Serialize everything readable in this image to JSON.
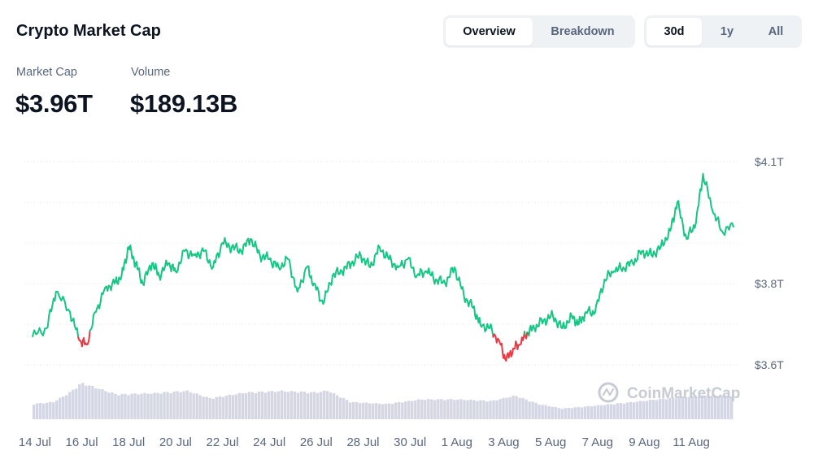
{
  "header": {
    "title": "Crypto Market Cap",
    "view_tabs": [
      {
        "label": "Overview",
        "active": true
      },
      {
        "label": "Breakdown",
        "active": false
      }
    ],
    "range_tabs": [
      {
        "label": "30d",
        "active": true
      },
      {
        "label": "1y",
        "active": false
      },
      {
        "label": "All",
        "active": false
      }
    ]
  },
  "stats": {
    "market_cap_label": "Market Cap",
    "market_cap_value": "$3.96T",
    "volume_label": "Volume",
    "volume_value": "$189.13B"
  },
  "watermark": "CoinMarketCap",
  "colors": {
    "up": "#16c784",
    "down": "#ea3943",
    "volume": "#d4d7e3",
    "grid": "#e3e6eb",
    "text_muted": "#58667e"
  },
  "chart_data": {
    "type": "line",
    "title": "",
    "xlabel": "",
    "ylabel": "",
    "ylim": [
      3.57,
      4.13
    ],
    "y_ticks": [
      3.6,
      3.8,
      4.1
    ],
    "y_tick_labels": [
      "$3.6T",
      "$3.8T",
      "$4.1T"
    ],
    "x_tick_labels": [
      "14 Jul",
      "16 Jul",
      "18 Jul",
      "20 Jul",
      "22 Jul",
      "24 Jul",
      "26 Jul",
      "28 Jul",
      "30 Jul",
      "1 Aug",
      "3 Aug",
      "5 Aug",
      "7 Aug",
      "9 Aug",
      "11 Aug"
    ],
    "x_tick_days": [
      0,
      2,
      4,
      6,
      8,
      10,
      12,
      14,
      16,
      18,
      20,
      22,
      24,
      26,
      28
    ],
    "grid": true,
    "x_unit": "days",
    "x_range": [
      -0.1,
      29.8
    ],
    "baseline": 3.675,
    "series": [
      {
        "x": [
          -0.1,
          0.5,
          0.9,
          1.5,
          1.9,
          2.2,
          2.6,
          3.0,
          3.4,
          3.7,
          4.0,
          4.3,
          4.6,
          5.0,
          5.3,
          5.7,
          6.0,
          6.4,
          6.8,
          7.2,
          7.6,
          8.0,
          8.4,
          8.8,
          9.2,
          9.6,
          10.0,
          10.4,
          10.8,
          11.2,
          11.6,
          11.9,
          12.3,
          12.7,
          13.1,
          13.5,
          13.9,
          14.3,
          14.7,
          15.1,
          15.5,
          15.9,
          16.3,
          16.7,
          17.1,
          17.5,
          17.9,
          18.3,
          18.7,
          19.0,
          19.4,
          19.8,
          20.1,
          20.4,
          20.7,
          21.0,
          21.3,
          21.7,
          22.1,
          22.5,
          22.9,
          23.2,
          23.5,
          23.9,
          24.3,
          24.7,
          25.1,
          25.5,
          25.9,
          26.3,
          26.7,
          27.1,
          27.4,
          27.8,
          28.2,
          28.5,
          28.9,
          29.3,
          29.8
        ],
        "values": [
          3.67,
          3.69,
          3.78,
          3.73,
          3.66,
          3.65,
          3.73,
          3.79,
          3.8,
          3.82,
          3.89,
          3.85,
          3.8,
          3.85,
          3.82,
          3.85,
          3.83,
          3.88,
          3.87,
          3.88,
          3.84,
          3.9,
          3.89,
          3.88,
          3.91,
          3.87,
          3.86,
          3.84,
          3.86,
          3.78,
          3.84,
          3.8,
          3.75,
          3.82,
          3.83,
          3.85,
          3.87,
          3.84,
          3.89,
          3.86,
          3.84,
          3.86,
          3.82,
          3.83,
          3.81,
          3.8,
          3.84,
          3.77,
          3.74,
          3.7,
          3.69,
          3.66,
          3.61,
          3.64,
          3.65,
          3.68,
          3.69,
          3.71,
          3.72,
          3.69,
          3.72,
          3.7,
          3.73,
          3.73,
          3.81,
          3.83,
          3.84,
          3.85,
          3.88,
          3.87,
          3.89,
          3.93,
          4.0,
          3.91,
          3.95,
          4.07,
          3.98,
          3.93,
          3.94
        ]
      }
    ],
    "volume": {
      "x": [
        -0.1,
        0.8,
        1.5,
        2.0,
        2.5,
        3.5,
        5.0,
        6.5,
        7.5,
        9.0,
        10.5,
        12.0,
        12.5,
        13.5,
        15.0,
        16.5,
        18.0,
        19.5,
        20.5,
        21.5,
        22.5,
        24.0,
        25.5,
        27.0,
        28.5,
        29.8
      ],
      "values": [
        0.4,
        0.45,
        0.7,
        0.95,
        0.85,
        0.65,
        0.68,
        0.74,
        0.55,
        0.7,
        0.74,
        0.7,
        0.75,
        0.45,
        0.4,
        0.52,
        0.52,
        0.48,
        0.62,
        0.4,
        0.28,
        0.36,
        0.45,
        0.55,
        0.62,
        0.6
      ]
    }
  }
}
